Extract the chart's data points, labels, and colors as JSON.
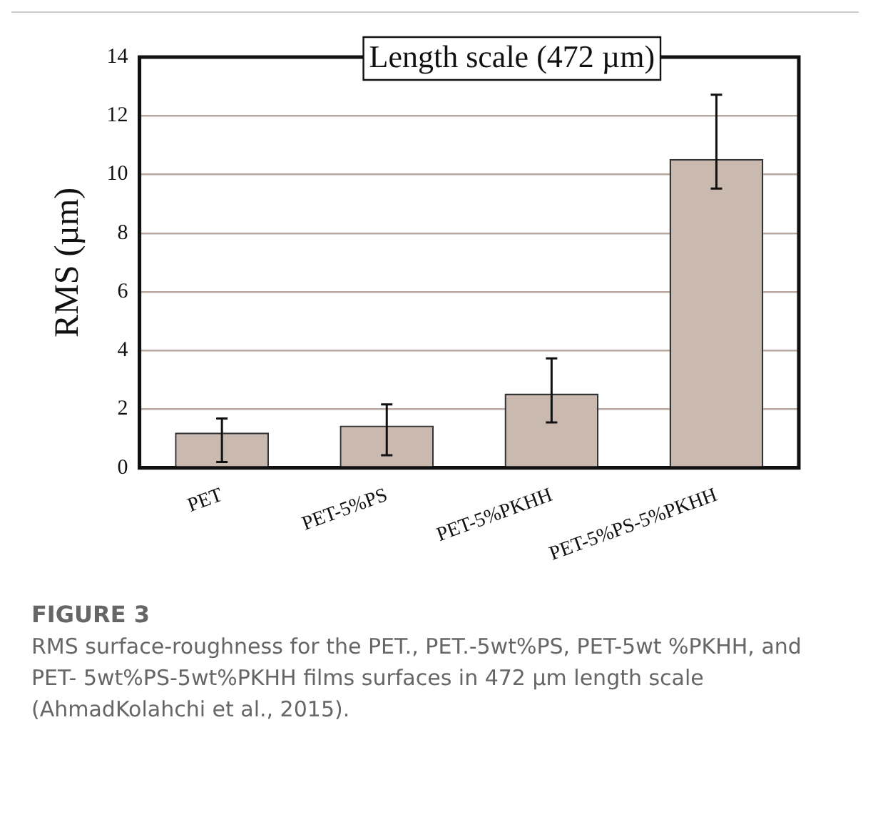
{
  "chart_data": {
    "type": "bar",
    "title": "Length scale (472 µm)",
    "ylabel": "RMS (µm)",
    "categories": [
      "PET",
      "PET-5%PS",
      "PET-5%PKHH",
      "PET-5%PS-5%PKHH"
    ],
    "values": [
      1.2,
      1.44,
      2.53,
      10.53
    ],
    "errors": [
      [
        0.2,
        1.68
      ],
      [
        0.43,
        2.16
      ],
      [
        1.55,
        3.73
      ],
      [
        9.52,
        12.72
      ]
    ],
    "color": "#c9b9ae",
    "ylim": [
      0,
      14
    ],
    "yticks": [
      0,
      2,
      4,
      6,
      8,
      10,
      12,
      14
    ],
    "grid": "y",
    "legend": false,
    "annotations": [
      "FIGURE 3",
      "RMS surface-roughness for the PET., PET.-5wt%PS, PET-5wt %PKHH, and PET- 5wt%PS-5wt%PKHH films surfaces in 472 µm length scale (AhmadKolahchi et al., 2015)."
    ]
  }
}
